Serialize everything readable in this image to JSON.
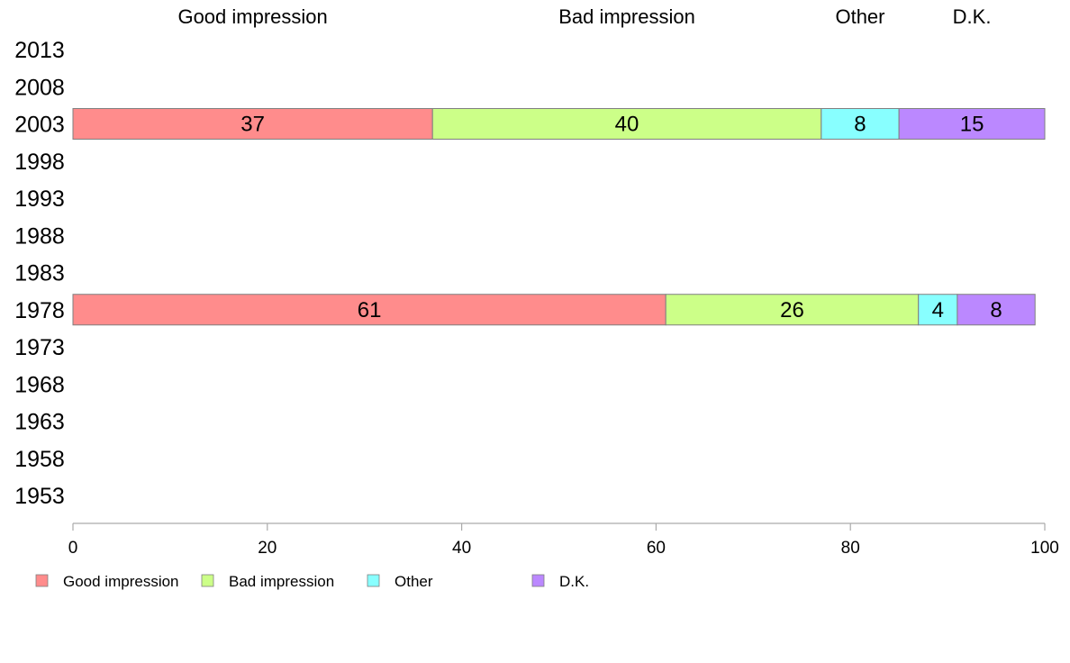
{
  "chart_data": {
    "type": "bar",
    "orientation": "horizontal",
    "stacked": true,
    "title": "",
    "xlabel": "",
    "ylabel": "",
    "xlim": [
      0,
      100
    ],
    "x_ticks": [
      0,
      20,
      40,
      60,
      80,
      100
    ],
    "grid": false,
    "legend_position": "bottom-left",
    "categories": [
      "2013",
      "2008",
      "2003",
      "1998",
      "1993",
      "1988",
      "1983",
      "1978",
      "1973",
      "1968",
      "1963",
      "1958",
      "1953"
    ],
    "column_headers": [
      "Good impression",
      "Bad impression",
      "Other",
      "D.K."
    ],
    "series": [
      {
        "name": "Good impression",
        "color": "#FF8C8C",
        "values": [
          null,
          null,
          37,
          null,
          null,
          null,
          null,
          61,
          null,
          null,
          null,
          null,
          null
        ]
      },
      {
        "name": "Bad impression",
        "color": "#CCFF88",
        "values": [
          null,
          null,
          40,
          null,
          null,
          null,
          null,
          26,
          null,
          null,
          null,
          null,
          null
        ]
      },
      {
        "name": "Other",
        "color": "#88FFFF",
        "values": [
          null,
          null,
          8,
          null,
          null,
          null,
          null,
          4,
          null,
          null,
          null,
          null,
          null
        ]
      },
      {
        "name": "D.K.",
        "color": "#BB88FF",
        "values": [
          null,
          null,
          15,
          null,
          null,
          null,
          null,
          8,
          null,
          null,
          null,
          null,
          null
        ]
      }
    ]
  }
}
